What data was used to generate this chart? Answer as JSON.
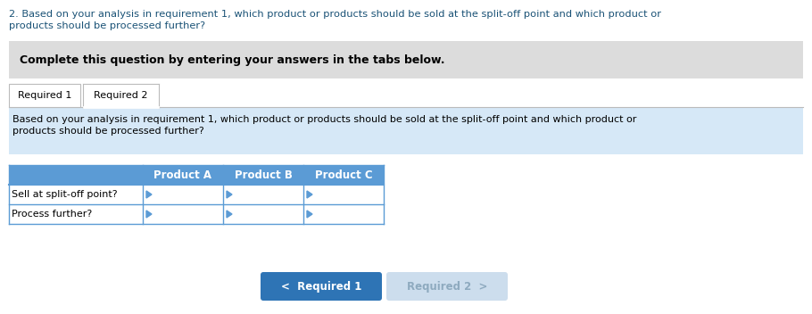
{
  "title_line1": "2. Based on your analysis in requirement 1, which product or products should be sold at the split-off point and which product or",
  "title_line2": "products should be processed further?",
  "title_color": "#1A5276",
  "complete_box_text": "Complete this question by entering your answers in the tabs below.",
  "complete_box_bg": "#DCDCDC",
  "tab1_label": "Required 1",
  "tab2_label": "Required 2",
  "inner_text_line1": "Based on your analysis in requirement 1, which product or products should be sold at the split-off point and which product or",
  "inner_text_line2": "products should be processed further?",
  "inner_bg": "#D6E8F7",
  "table_header_cols": [
    "",
    "Product A",
    "Product B",
    "Product C"
  ],
  "table_rows": [
    "Sell at split-off point?",
    "Process further?"
  ],
  "table_header_bg": "#5B9BD5",
  "table_header_text": "#FFFFFF",
  "table_row_bg": "#FFFFFF",
  "table_border_color": "#5B9BD5",
  "btn1_label": "<  Required 1",
  "btn2_label": "Required 2  >",
  "btn1_bg": "#2E74B5",
  "btn2_bg": "#CCDDED",
  "btn1_text_color": "#FFFFFF",
  "btn2_text_color": "#8EAABF",
  "bg_color": "#FFFFFF",
  "tab_border_color": "#BBBBBB"
}
